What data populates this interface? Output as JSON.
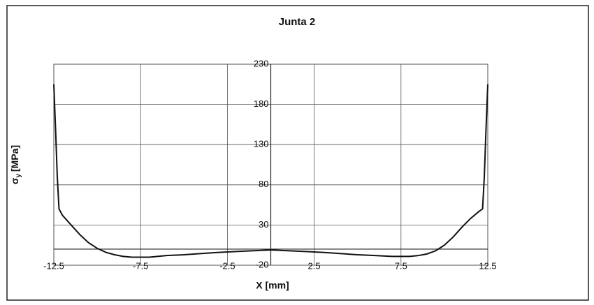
{
  "chart_data": {
    "type": "line",
    "title": "Junta 2",
    "xlabel": "X [mm]",
    "ylabel": {
      "symbol": "σ",
      "subscript": "y",
      "unit": "[MPa]"
    },
    "xlim": [
      -12.5,
      12.5
    ],
    "xticks": [
      -12.5,
      -7.5,
      -2.5,
      2.5,
      7.5,
      12.5
    ],
    "ylim": [
      -20,
      230
    ],
    "yticks": [
      230,
      180,
      130,
      80,
      30,
      -20
    ],
    "grid": true,
    "series": [
      {
        "name": "σy",
        "color": "#111111",
        "x": [
          -12.5,
          -12.4,
          -12.3,
          -12.2,
          -12.0,
          -11.5,
          -11.0,
          -10.5,
          -10.0,
          -9.5,
          -9.0,
          -8.5,
          -8.0,
          -7.5,
          -7.0,
          -6.0,
          -5.0,
          -4.0,
          -3.0,
          -2.0,
          -1.0,
          -0.5,
          0.0,
          0.5,
          1.0,
          2.0,
          3.0,
          4.0,
          5.0,
          6.0,
          7.0,
          7.5,
          8.0,
          8.5,
          9.0,
          9.5,
          10.0,
          10.5,
          11.0,
          11.5,
          12.0,
          12.2,
          12.3,
          12.4,
          12.5
        ],
        "values": [
          205,
          150,
          90,
          50,
          42,
          30,
          18,
          8,
          1,
          -4,
          -7,
          -9,
          -10,
          -10,
          -10,
          -8,
          -7,
          -5.5,
          -4,
          -3,
          -2,
          -1.5,
          -1,
          -1.5,
          -2,
          -3,
          -4,
          -5.5,
          -7,
          -8,
          -9,
          -9,
          -9,
          -8,
          -6,
          -2,
          5,
          15,
          27,
          38,
          47,
          50,
          90,
          150,
          205
        ]
      }
    ]
  }
}
